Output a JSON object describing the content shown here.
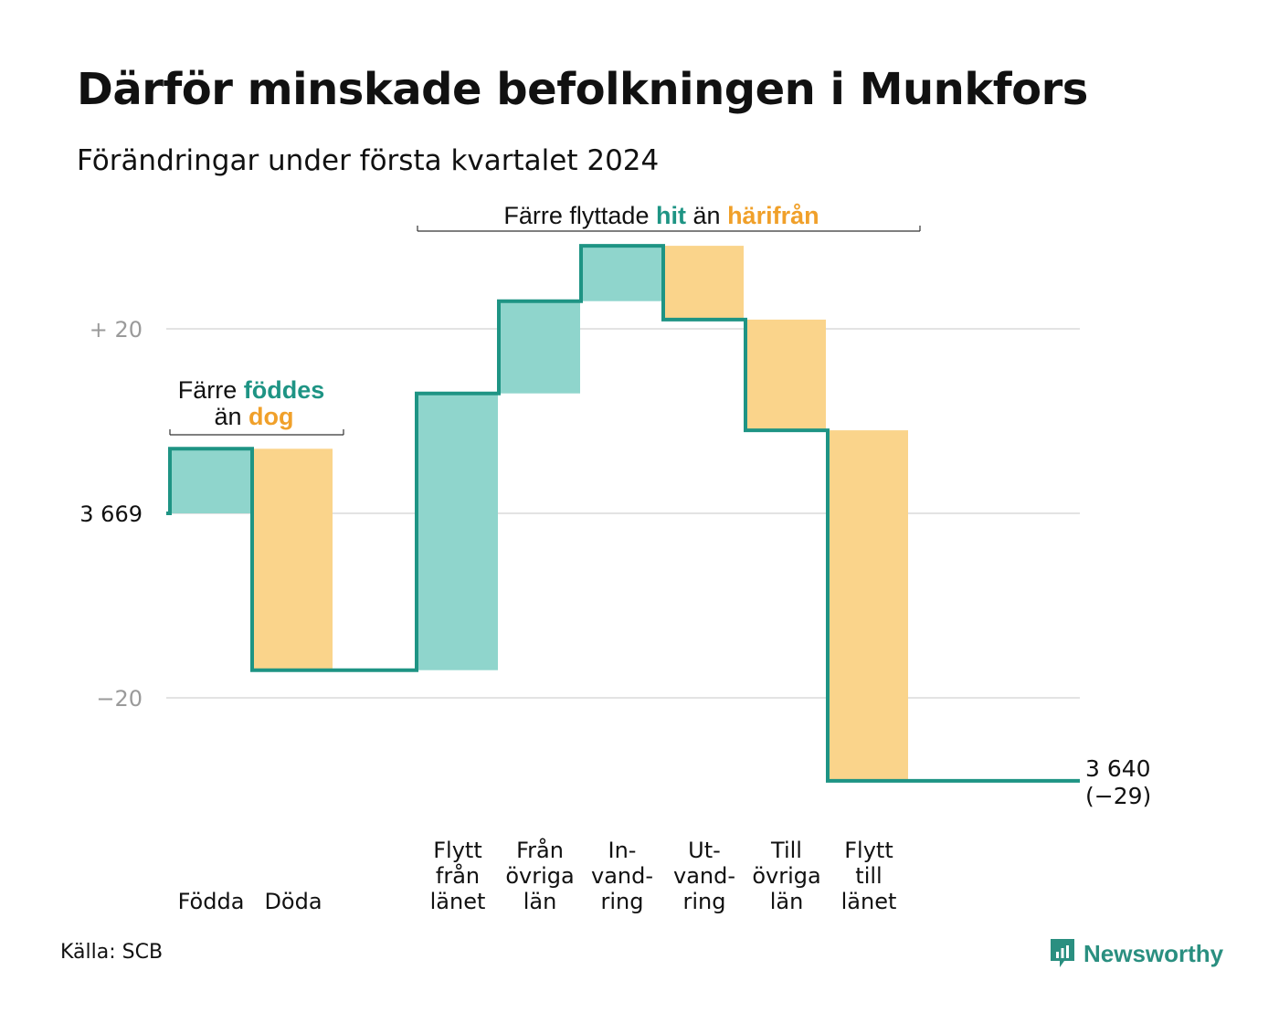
{
  "title": "Därför minskade befolkningen i Munkfors",
  "subtitle": "Förändringar under första kvartalet 2024",
  "source": "Källa: SCB",
  "logo_text": "Newsworthy",
  "colors": {
    "increase": "#8fd5cc",
    "decrease": "#fad48b",
    "line": "#1e9484",
    "hit": "#1e9484",
    "away": "#f0a02a",
    "grid": "#e3e3e3",
    "tick_muted": "#9a9a9a"
  },
  "annotations": {
    "births": {
      "part1": "Färre",
      "hit": "föddes",
      "part2": "än",
      "away": "dog"
    },
    "moves": {
      "part1": "Färre flyttade",
      "hit": "hit",
      "part2": "än",
      "away": "härifrån"
    }
  },
  "chart_data": {
    "type": "waterfall",
    "start_value": 3669,
    "end_label": [
      "3 640",
      "(−29)"
    ],
    "end_value": 3640,
    "end_change": -29,
    "yticks": [
      {
        "value": 20,
        "label": "+  20",
        "muted": true
      },
      {
        "value": 0,
        "label": "3  669",
        "muted": false
      },
      {
        "value": -20,
        "label": "−20",
        "muted": true
      }
    ],
    "ylim": [
      -30,
      31
    ],
    "steps": [
      {
        "label": [
          "",
          "",
          "Födda"
        ],
        "value": 7,
        "kind": "in"
      },
      {
        "label": [
          "",
          "",
          "Döda"
        ],
        "value": -24,
        "kind": "out"
      },
      {
        "label": [
          "",
          "",
          ""
        ],
        "value": 0,
        "kind": "gap"
      },
      {
        "label": [
          "Flytt",
          "från",
          "länet"
        ],
        "value": 30,
        "kind": "in"
      },
      {
        "label": [
          "Från",
          "övriga",
          "län"
        ],
        "value": 10,
        "kind": "in"
      },
      {
        "label": [
          "In-",
          "vand-",
          "ring"
        ],
        "value": 6,
        "kind": "in"
      },
      {
        "label": [
          "Ut-",
          "vand-",
          "ring"
        ],
        "value": -8,
        "kind": "out"
      },
      {
        "label": [
          "Till",
          "övriga",
          "län"
        ],
        "value": -12,
        "kind": "out"
      },
      {
        "label": [
          "Flytt",
          "till",
          "länet"
        ],
        "value": -38,
        "kind": "out"
      }
    ]
  }
}
